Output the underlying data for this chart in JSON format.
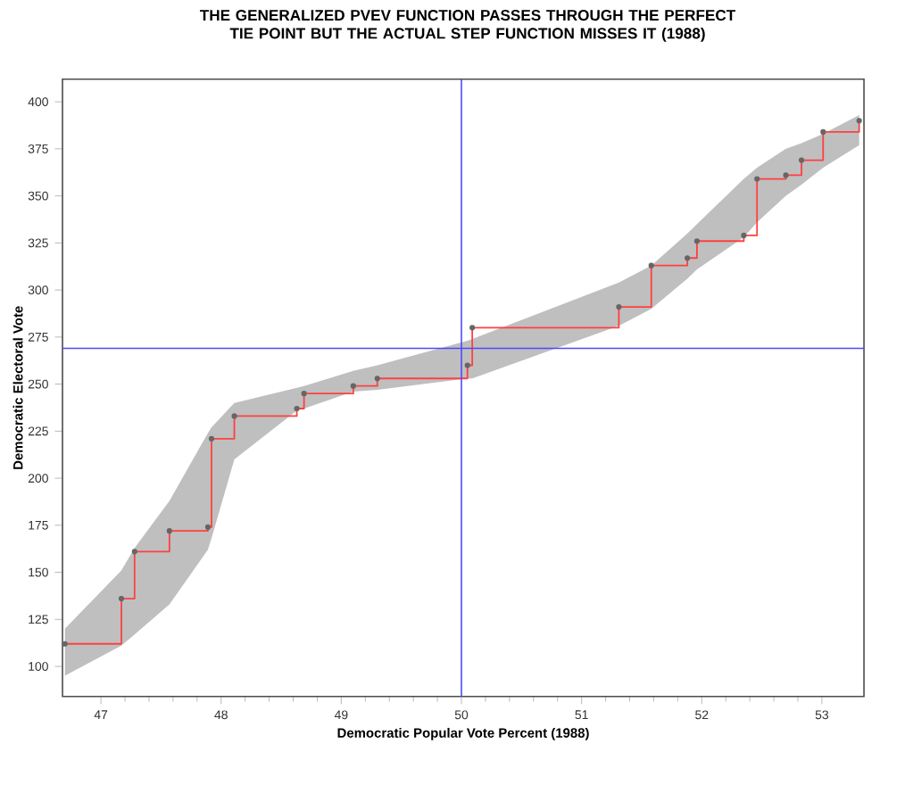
{
  "chart_data": {
    "type": "step",
    "title": "THE GENERALIZED PVEV FUNCTION PASSES THROUGH THE PERFECT TIE POINT BUT THE ACTUAL STEP FUNCTION MISSES IT  (1988)",
    "xlabel": "Democratic Popular Vote Percent (1988)",
    "ylabel": "Democratic Electoral Vote",
    "series": [
      {
        "color": "#ff4040",
        "marker": "circle",
        "x": [
          46.7,
          47.17,
          47.28,
          47.57,
          47.89,
          47.92,
          48.11,
          48.63,
          48.69,
          49.1,
          49.3,
          50.05,
          50.09,
          51.31,
          51.58,
          51.88,
          51.96,
          52.35,
          52.46,
          52.7,
          52.83,
          53.01,
          53.31
        ],
        "values": [
          112,
          136,
          161,
          172,
          174,
          221,
          233,
          237,
          245,
          249,
          253,
          260,
          280,
          291,
          313,
          317,
          326,
          329,
          359,
          361,
          369,
          384,
          390
        ],
        "lower": [
          95,
          111,
          117,
          133,
          162,
          168,
          210,
          236,
          237,
          246,
          247,
          253,
          253,
          281,
          290,
          306,
          311,
          328,
          336,
          350,
          356,
          365,
          377
        ],
        "upper": [
          120,
          151,
          163,
          188,
          224,
          227,
          240,
          248,
          249,
          257,
          260,
          273,
          274,
          304,
          313,
          330,
          335,
          359,
          365,
          375,
          378,
          383,
          393
        ]
      }
    ],
    "ref_lines": [
      {
        "axis": "x",
        "value": 50,
        "color": "#4a4aff"
      },
      {
        "axis": "y",
        "value": 269,
        "color": "#4a4aff"
      }
    ],
    "xlim": [
      46.68,
      53.35
    ],
    "ylim": [
      84,
      412
    ],
    "xticks": [
      47,
      48,
      49,
      50,
      51,
      52,
      53
    ],
    "yticks": [
      100,
      125,
      150,
      175,
      200,
      225,
      250,
      275,
      300,
      325,
      350,
      375,
      400
    ],
    "grid": false
  }
}
